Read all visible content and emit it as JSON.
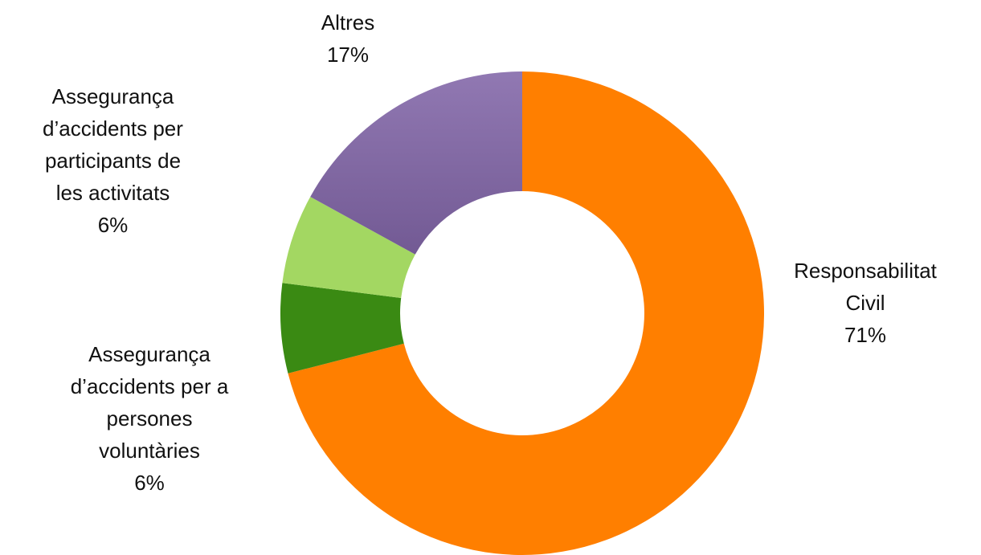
{
  "chart_data": {
    "type": "donut",
    "categories": [
      "Responsabilitat Civil",
      "Assegurança d’accidents per a persones voluntàries",
      "Assegurança d’accidents per participants de les activitats",
      "Altres"
    ],
    "values": [
      71,
      6,
      6,
      17
    ],
    "value_labels": [
      "71%",
      "6%",
      "6%",
      "17%"
    ],
    "colors": [
      "#ff7f00",
      "#3a8a13",
      "#a3d762",
      "#8266a8"
    ]
  }
}
